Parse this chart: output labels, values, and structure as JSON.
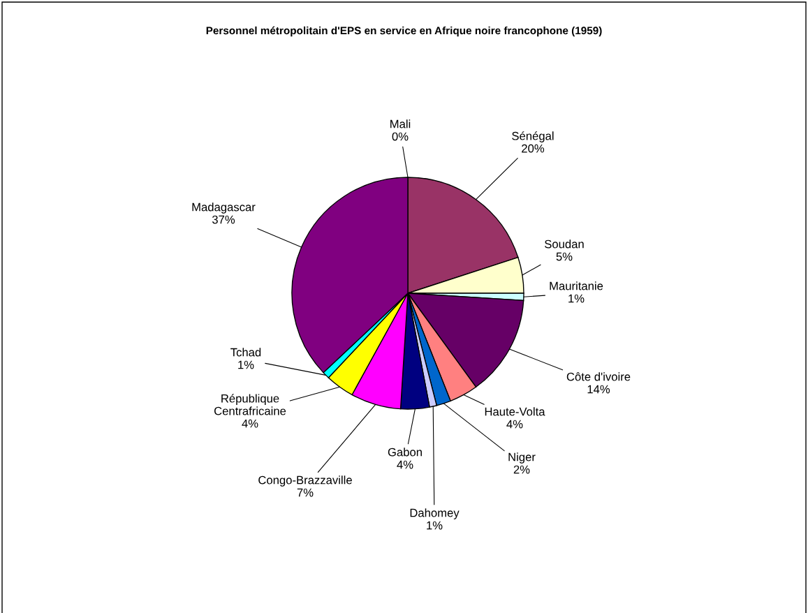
{
  "chart_data": {
    "type": "pie",
    "title": "Personnel métropolitain d'EPS en service en Afrique noire francophone (1959)",
    "categories": [
      "Mali",
      "Sénégal",
      "Soudan",
      "Mauritanie",
      "Côte d'ivoire",
      "Haute-Volta",
      "Niger",
      "Dahomey",
      "Gabon",
      "Congo-Brazzaville",
      "République\nCentrafricaine",
      "Tchad",
      "Madagascar"
    ],
    "values": [
      0,
      20,
      5,
      1,
      14,
      4,
      2,
      1,
      4,
      7,
      4,
      1,
      37
    ],
    "value_labels": [
      "0%",
      "20%",
      "5%",
      "1%",
      "14%",
      "4%",
      "2%",
      "1%",
      "4%",
      "7%",
      "4%",
      "1%",
      "37%"
    ],
    "colors": [
      "#9999ff",
      "#993366",
      "#ffffcc",
      "#ccffff",
      "#660066",
      "#ff8080",
      "#0066cc",
      "#ccccff",
      "#000080",
      "#ff00ff",
      "#ffff00",
      "#00ffff",
      "#800080"
    ]
  }
}
